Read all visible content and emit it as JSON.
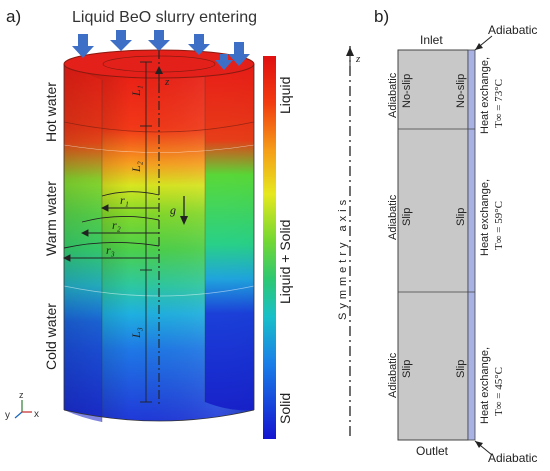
{
  "panel_a": {
    "label": "a)",
    "title": "Liquid BeO slurry entering",
    "zones": [
      "Hot water",
      "Warm water",
      "Cold water"
    ],
    "lengths": [
      "L₁",
      "L₂",
      "L₃"
    ],
    "radii": [
      "r₁",
      "r₂",
      "r₃"
    ],
    "z_label": "z",
    "gravity_label": "g⃗",
    "colorbar_labels": [
      "Liquid",
      "Liquid + Solid",
      "Solid"
    ],
    "axis_triad": {
      "y": "y",
      "z": "z",
      "x": "x"
    },
    "colors": {
      "hot": "#e81c16",
      "solid": "#1a24d6",
      "arrow": "#3d6fc7"
    }
  },
  "panel_b": {
    "label": "b)",
    "inlet": "Inlet",
    "outlet": "Outlet",
    "adiabatic_top": "Adiabatic",
    "adiabatic_bottom": "Adiabatic",
    "z_label": "z",
    "symmetry_axis": "Symmetry axis",
    "sections": [
      {
        "left_wall": "Adiabatic",
        "left_bc": "No-slip",
        "right_bc": "No-slip",
        "heat_exchange": "Heat exchange,",
        "temperature": "T∞ = 73°C"
      },
      {
        "left_wall": "Adiabatic",
        "left_bc": "Slip",
        "right_bc": "Slip",
        "heat_exchange": "Heat exchange,",
        "temperature": "T∞ = 59°C"
      },
      {
        "left_wall": "Adiabatic",
        "left_bc": "Slip",
        "right_bc": "Slip",
        "heat_exchange": "Heat exchange,",
        "temperature": "T∞ = 45°C"
      }
    ],
    "colors": {
      "domain": "#c8c8c8",
      "wall": "#a9b3e3"
    }
  }
}
